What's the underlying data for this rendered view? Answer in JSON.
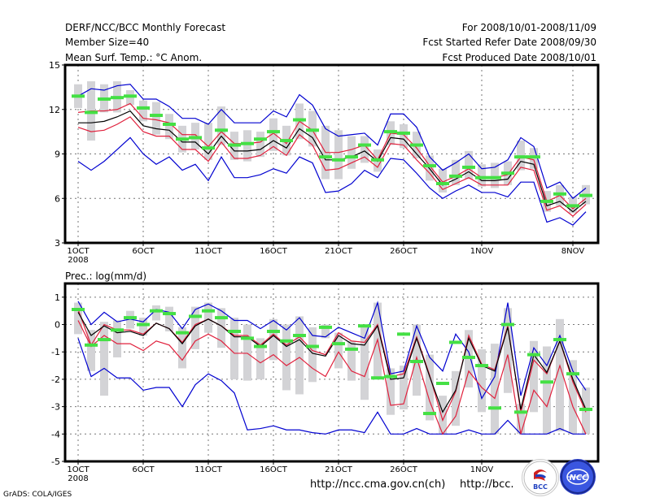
{
  "header": {
    "title": "DERF/NCC/BCC Monthly Forecast",
    "member_size": "Member Size=40",
    "variable_top": "Mean Surf. Temp.: °C Anom.",
    "period": "For 2008/10/01-2008/11/09",
    "started": "Fcst Started Refer Date 2008/09/30",
    "produced": "Fcst Produced Date 2008/10/01"
  },
  "footer": {
    "grads": "GrADS: COLA/IGES",
    "url_ncc": "http://ncc.cma.gov.cn(ch)",
    "url_bcc": "http://bcc.",
    "logo_bcc": "BCC",
    "logo_ncc": "NCC"
  },
  "colors": {
    "mean": "#000000",
    "inner": "#e0203c",
    "outer": "#0000d0",
    "bar": "#d3d3d6",
    "obs": "#44e044",
    "grid": "#777777"
  },
  "chart_data": [
    {
      "type": "line",
      "title": "Mean Surf. Temp.: °C Anom.",
      "xlabel": "",
      "ylabel": "",
      "ylim": [
        3,
        15
      ],
      "yticks": [
        3,
        6,
        9,
        12,
        15
      ],
      "xtick_labels": [
        {
          "day": 0,
          "label": "1OCT",
          "sub": "2008"
        },
        {
          "day": 5,
          "label": "6OCT"
        },
        {
          "day": 10,
          "label": "11OCT"
        },
        {
          "day": 15,
          "label": "16OCT"
        },
        {
          "day": 20,
          "label": "21OCT"
        },
        {
          "day": 25,
          "label": "26OCT"
        },
        {
          "day": 31,
          "label": "1NOV"
        },
        {
          "day": 38,
          "label": "8NOV"
        }
      ],
      "grid": true,
      "n_days": 40,
      "series": [
        {
          "name": "max",
          "color": "outer",
          "values": [
            12.9,
            13.4,
            13.3,
            13.6,
            13.7,
            12.7,
            12.7,
            12.2,
            11.4,
            11.4,
            11.0,
            12.0,
            11.1,
            11.1,
            11.1,
            11.9,
            11.5,
            13.0,
            12.3,
            10.7,
            10.2,
            10.3,
            10.4,
            9.6,
            11.7,
            11.7,
            10.8,
            8.8,
            7.9,
            8.4,
            9.0,
            8.0,
            8.1,
            8.6,
            10.1,
            9.5,
            6.7,
            7.1,
            6.0,
            6.7
          ]
        },
        {
          "name": "upper",
          "color": "inner",
          "values": [
            11.8,
            11.9,
            11.9,
            12.0,
            12.4,
            11.4,
            11.3,
            11.1,
            10.3,
            10.3,
            9.5,
            10.5,
            9.7,
            9.7,
            9.8,
            10.4,
            9.7,
            11.2,
            10.6,
            9.1,
            9.1,
            9.3,
            9.6,
            8.6,
            10.4,
            10.3,
            9.4,
            8.2,
            7.1,
            7.5,
            8.0,
            7.4,
            7.4,
            7.6,
            8.8,
            8.6,
            5.8,
            6.2,
            5.3,
            6.0
          ]
        },
        {
          "name": "mean",
          "color": "mean",
          "values": [
            11.1,
            11.1,
            11.2,
            11.5,
            11.9,
            10.9,
            10.7,
            10.6,
            9.8,
            9.8,
            9.0,
            10.2,
            9.2,
            9.2,
            9.3,
            9.9,
            9.4,
            10.7,
            10.1,
            8.6,
            8.6,
            8.8,
            9.2,
            8.5,
            10.1,
            10.0,
            9.0,
            8.0,
            6.9,
            7.3,
            7.8,
            7.2,
            7.2,
            7.3,
            8.5,
            8.3,
            5.5,
            5.8,
            5.1,
            5.8
          ]
        },
        {
          "name": "lower",
          "color": "inner",
          "values": [
            10.8,
            10.5,
            10.6,
            11.0,
            11.5,
            10.5,
            10.2,
            10.2,
            9.3,
            9.3,
            8.5,
            9.8,
            8.7,
            8.7,
            8.9,
            9.5,
            8.9,
            10.3,
            9.6,
            7.9,
            8.0,
            8.4,
            8.8,
            8.1,
            9.7,
            9.6,
            8.6,
            7.7,
            6.6,
            7.0,
            7.4,
            6.9,
            6.9,
            6.9,
            8.1,
            7.9,
            5.2,
            5.5,
            4.8,
            5.6
          ]
        },
        {
          "name": "min",
          "color": "outer",
          "values": [
            8.5,
            7.9,
            8.5,
            9.3,
            10.1,
            9.0,
            8.3,
            8.8,
            7.9,
            8.3,
            7.2,
            8.8,
            7.4,
            7.4,
            7.6,
            8.0,
            7.7,
            8.8,
            8.4,
            6.4,
            6.5,
            7.0,
            7.9,
            7.4,
            8.7,
            8.6,
            7.7,
            6.7,
            6.0,
            6.5,
            6.9,
            6.4,
            6.4,
            6.1,
            7.1,
            7.1,
            4.4,
            4.7,
            4.2,
            5.1
          ]
        },
        {
          "name": "obs",
          "color": "obs",
          "values": [
            12.9,
            11.8,
            12.7,
            12.8,
            12.9,
            12.1,
            11.6,
            11.0,
            10.0,
            10.1,
            9.4,
            10.6,
            9.6,
            9.7,
            10.0,
            10.5,
            9.9,
            11.3,
            10.6,
            8.8,
            8.6,
            8.8,
            9.6,
            8.6,
            10.5,
            10.4,
            9.6,
            8.2,
            7.0,
            7.5,
            8.1,
            7.4,
            7.4,
            7.7,
            8.8,
            8.8,
            5.8,
            6.3,
            5.5,
            6.2
          ]
        },
        {
          "name": "bar_high",
          "color": "bar",
          "values": [
            13.7,
            13.9,
            13.7,
            13.9,
            13.3,
            12.6,
            12.5,
            11.7,
            10.9,
            11.1,
            11.1,
            12.2,
            10.5,
            10.6,
            10.5,
            11.4,
            10.9,
            12.4,
            11.9,
            10.9,
            10.6,
            10.2,
            10.2,
            9.3,
            11.2,
            11.0,
            10.5,
            8.9,
            8.0,
            8.6,
            9.2,
            8.3,
            8.4,
            8.5,
            9.9,
            9.4,
            6.5,
            6.9,
            6.1,
            6.9
          ]
        },
        {
          "name": "bar_low",
          "color": "bar",
          "values": [
            12.1,
            9.9,
            11.8,
            11.8,
            12.3,
            11.2,
            10.3,
            10.0,
            9.1,
            9.3,
            8.6,
            9.6,
            8.6,
            8.5,
            8.8,
            9.2,
            8.9,
            10.0,
            9.5,
            7.3,
            7.3,
            8.0,
            8.4,
            7.8,
            9.6,
            9.4,
            8.7,
            7.2,
            6.4,
            6.9,
            7.3,
            6.8,
            6.7,
            6.9,
            7.9,
            8.0,
            5.1,
            5.5,
            5.0,
            5.6
          ]
        }
      ]
    },
    {
      "type": "line",
      "title": "Prec.: log(mm/d)",
      "xlabel": "",
      "ylabel": "",
      "ylim": [
        -5,
        1.5
      ],
      "yticks": [
        -5,
        -4,
        -3,
        -2,
        -1,
        0,
        1
      ],
      "xtick_labels": [
        {
          "day": 0,
          "label": "1OCT",
          "sub": "2008"
        },
        {
          "day": 5,
          "label": "6OCT"
        },
        {
          "day": 10,
          "label": "11OCT"
        },
        {
          "day": 15,
          "label": "16OCT"
        },
        {
          "day": 20,
          "label": "21OCT"
        },
        {
          "day": 25,
          "label": "26OCT"
        },
        {
          "day": 31,
          "label": "1NOV"
        }
      ],
      "grid": true,
      "n_days": 40,
      "series": [
        {
          "name": "max",
          "color": "outer",
          "values": [
            0.85,
            0.0,
            0.45,
            0.1,
            0.2,
            0.1,
            0.55,
            0.45,
            -0.15,
            0.55,
            0.75,
            0.5,
            0.15,
            0.15,
            -0.15,
            0.15,
            -0.2,
            0.25,
            -0.4,
            -0.45,
            -0.1,
            -0.3,
            -0.5,
            0.8,
            -1.8,
            -1.7,
            -0.05,
            -1.2,
            -1.7,
            -0.35,
            -1.0,
            -2.7,
            -1.9,
            0.8,
            -2.6,
            -0.85,
            -1.5,
            -0.4,
            -1.7,
            -2.4
          ]
        },
        {
          "name": "upper",
          "color": "inner",
          "values": [
            0.55,
            -0.75,
            0.0,
            -0.2,
            -0.2,
            -0.35,
            0.05,
            -0.15,
            -0.65,
            0.0,
            0.2,
            -0.05,
            -0.4,
            -0.4,
            -0.75,
            -0.35,
            -0.75,
            -0.45,
            -0.95,
            -1.1,
            -0.3,
            -0.6,
            -0.65,
            0.0,
            -1.9,
            -1.8,
            -0.45,
            -1.85,
            -3.5,
            -2.45,
            -0.4,
            -1.45,
            -1.65,
            -0.05,
            -3.2,
            -1.3,
            -1.8,
            -0.6,
            -2.1,
            -3.2
          ]
        },
        {
          "name": "mean",
          "color": "mean",
          "values": [
            0.45,
            -0.4,
            -0.05,
            -0.3,
            -0.25,
            -0.4,
            0.05,
            -0.15,
            -0.7,
            -0.05,
            0.2,
            -0.05,
            -0.45,
            -0.45,
            -0.8,
            -0.4,
            -0.8,
            -0.55,
            -1.05,
            -1.15,
            -0.4,
            -0.7,
            -0.75,
            -0.05,
            -2.0,
            -1.95,
            -0.5,
            -1.9,
            -3.2,
            -2.4,
            -0.5,
            -1.5,
            -1.7,
            -0.1,
            -3.1,
            -1.1,
            -1.75,
            -0.6,
            -2.0,
            -3.1
          ]
        },
        {
          "name": "lower",
          "color": "inner",
          "values": [
            0.15,
            -0.8,
            -0.4,
            -0.7,
            -0.7,
            -0.95,
            -0.6,
            -0.75,
            -1.3,
            -0.6,
            -0.35,
            -0.6,
            -1.05,
            -1.05,
            -1.4,
            -1.1,
            -1.5,
            -1.2,
            -1.6,
            -1.9,
            -1.0,
            -1.7,
            -1.9,
            -0.55,
            -2.95,
            -2.9,
            -1.2,
            -2.8,
            -4.0,
            -3.35,
            -1.7,
            -2.3,
            -2.7,
            -1.1,
            -4.0,
            -2.4,
            -3.0,
            -1.5,
            -3.0,
            -4.0
          ]
        },
        {
          "name": "min",
          "color": "outer",
          "values": [
            -0.5,
            -1.9,
            -1.6,
            -1.95,
            -1.95,
            -2.4,
            -2.3,
            -2.3,
            -3.0,
            -2.2,
            -1.8,
            -2.05,
            -2.5,
            -3.85,
            -3.8,
            -3.7,
            -3.85,
            -3.85,
            -3.95,
            -4.0,
            -3.85,
            -3.85,
            -3.95,
            -3.2,
            -4.0,
            -4.0,
            -3.8,
            -4.0,
            -4.0,
            -4.0,
            -3.85,
            -4.0,
            -4.0,
            -3.5,
            -4.0,
            -4.0,
            -4.0,
            -3.8,
            -4.0,
            -4.0
          ]
        },
        {
          "name": "obs",
          "color": "obs",
          "values": [
            0.55,
            -0.75,
            -0.55,
            -0.2,
            0.25,
            0.0,
            0.5,
            0.4,
            -0.3,
            0.3,
            0.5,
            0.25,
            -0.25,
            -0.5,
            -0.8,
            -0.25,
            -0.6,
            -0.4,
            -0.8,
            -0.1,
            -0.7,
            -0.9,
            -0.05,
            -1.95,
            -1.9,
            -0.35,
            -1.35,
            -3.25,
            -2.15,
            -0.65,
            -1.2,
            -1.5,
            -3.05,
            0.0,
            -3.2,
            -1.1,
            -2.1,
            -0.55,
            -1.8,
            -3.1
          ]
        },
        {
          "name": "bar_high",
          "color": "bar",
          "values": [
            0.8,
            -0.2,
            0.1,
            0.15,
            0.5,
            0.25,
            0.7,
            0.65,
            -0.1,
            0.65,
            0.8,
            0.6,
            0.25,
            0.0,
            -0.5,
            0.2,
            0.0,
            0.3,
            -0.1,
            0.0,
            -0.3,
            -0.6,
            0.0,
            0.8,
            -1.6,
            -1.5,
            0.0,
            -1.1,
            -2.6,
            -1.7,
            -0.2,
            -0.9,
            -0.7,
            0.6,
            -2.9,
            -0.6,
            -0.8,
            0.2,
            -1.3,
            -2.3
          ]
        },
        {
          "name": "bar_low",
          "color": "bar",
          "values": [
            -0.35,
            -1.7,
            -2.6,
            -1.2,
            -0.15,
            -0.4,
            0.15,
            -0.25,
            -1.6,
            -0.9,
            -0.3,
            -0.85,
            -2.0,
            -2.05,
            -2.0,
            -1.3,
            -2.4,
            -2.55,
            -2.1,
            -0.5,
            -1.6,
            -2.05,
            -2.75,
            -2.0,
            -3.3,
            -3.1,
            -2.6,
            -3.5,
            -4.0,
            -3.7,
            -2.3,
            -3.2,
            -4.0,
            -2.5,
            -4.0,
            -3.2,
            -4.0,
            -3.9,
            -4.0,
            -4.0
          ]
        }
      ]
    }
  ]
}
